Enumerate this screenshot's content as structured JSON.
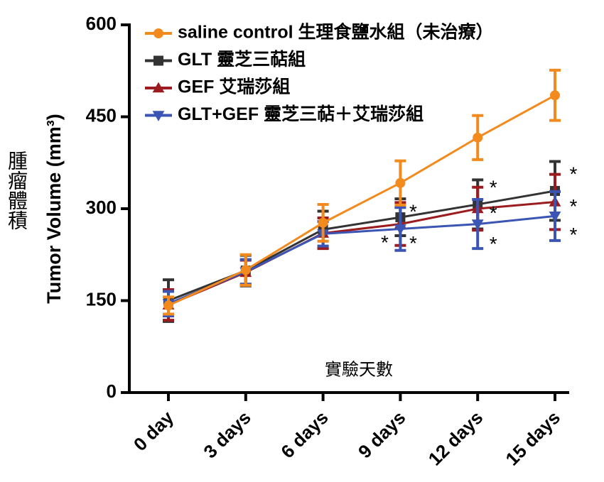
{
  "chart_data": {
    "type": "line",
    "ylabel": "Tumor Volume (mm³)",
    "ylabel_zh": "腫瘤體積",
    "xlabel": "實驗天數",
    "categories": [
      "0 day",
      "3 days",
      "6 days",
      "9 days",
      "12 days",
      "15 days"
    ],
    "ylim": [
      0,
      600
    ],
    "yticks": [
      0,
      150,
      300,
      450,
      600
    ],
    "legend": "top-left",
    "series": [
      {
        "name": "saline control 生理食鹽水組（未治療）",
        "color": "#f28a1e",
        "marker": "circle",
        "values": [
          142,
          200,
          277,
          342,
          416,
          485
        ],
        "errors": [
          14,
          25,
          30,
          36,
          36,
          41
        ]
      },
      {
        "name": "GLT 靈芝三萜組",
        "color": "#333333",
        "marker": "square",
        "values": [
          150,
          199,
          266,
          286,
          307,
          329
        ],
        "errors": [
          34,
          25,
          30,
          30,
          40,
          48
        ]
      },
      {
        "name": "GEF 艾瑞莎組",
        "color": "#9b1b1f",
        "marker": "triangle-up",
        "values": [
          143,
          196,
          260,
          275,
          300,
          311
        ],
        "errors": [
          25,
          20,
          25,
          35,
          35,
          45
        ]
      },
      {
        "name": "GLT+GEF 靈芝三萜＋艾瑞莎組",
        "color": "#3a55b4",
        "marker": "triangle-down",
        "values": [
          145,
          197,
          259,
          267,
          275,
          288
        ],
        "errors": [
          20,
          20,
          20,
          35,
          40,
          40
        ]
      }
    ],
    "annotations": [
      {
        "text": "*",
        "category": "9 days",
        "series": "GLT 靈芝三萜組"
      },
      {
        "text": "*",
        "category": "9 days",
        "series": "GEF 艾瑞莎組"
      },
      {
        "text": "*",
        "category": "9 days",
        "series": "GLT+GEF 靈芝三萜＋艾瑞莎組"
      },
      {
        "text": "*",
        "category": "12 days",
        "series": "GLT 靈芝三萜組"
      },
      {
        "text": "*",
        "category": "12 days",
        "series": "GEF 艾瑞莎組"
      },
      {
        "text": "*",
        "category": "12 days",
        "series": "GLT+GEF 靈芝三萜＋艾瑞莎組"
      },
      {
        "text": "*",
        "category": "15 days",
        "series": "GLT 靈芝三萜組"
      },
      {
        "text": "*",
        "category": "15 days",
        "series": "GEF 艾瑞莎組"
      },
      {
        "text": "*",
        "category": "15 days",
        "series": "GLT+GEF 靈芝三萜＋艾瑞莎組"
      }
    ]
  }
}
